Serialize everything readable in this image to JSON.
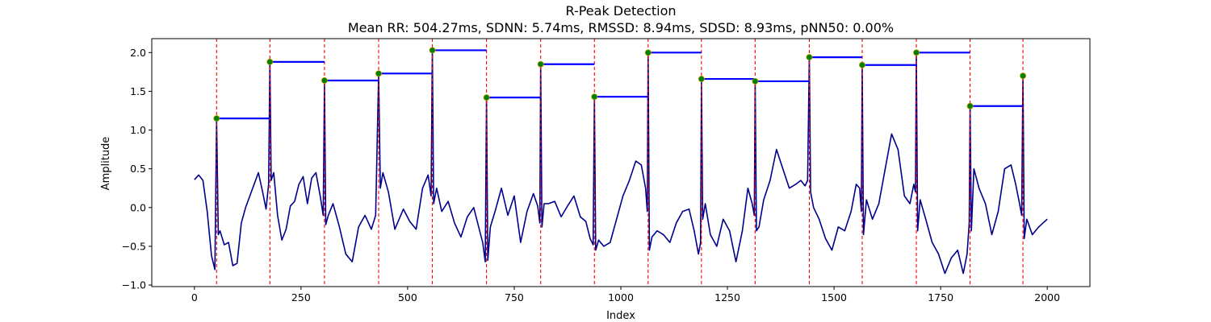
{
  "chart_data": {
    "type": "line",
    "title": "R-Peak Detection",
    "subtitle": "Mean RR: 504.27ms, SDNN: 5.74ms, RMSSD: 8.94ms, SDSD: 8.93ms, pNN50: 0.00%",
    "xlabel": "Index",
    "ylabel": "Amplitude",
    "xlim": [
      -100,
      2100
    ],
    "ylim": [
      -1.02,
      2.18
    ],
    "xticks": [
      0,
      250,
      500,
      750,
      1000,
      1250,
      1500,
      1750,
      2000
    ],
    "yticks": [
      -1.0,
      -0.5,
      0.0,
      0.5,
      1.0,
      1.5,
      2.0
    ],
    "grid": false,
    "colors": {
      "signal": "#00008B",
      "peak_line": "#FF0000",
      "rr_bar": "#0000FF",
      "peak_marker": "#008000"
    },
    "peaks": [
      {
        "x": 52,
        "y": 1.15
      },
      {
        "x": 177,
        "y": 1.88
      },
      {
        "x": 305,
        "y": 1.64
      },
      {
        "x": 432,
        "y": 1.73
      },
      {
        "x": 558,
        "y": 2.03
      },
      {
        "x": 685,
        "y": 1.42
      },
      {
        "x": 812,
        "y": 1.85
      },
      {
        "x": 938,
        "y": 1.43
      },
      {
        "x": 1064,
        "y": 2.0
      },
      {
        "x": 1189,
        "y": 1.66
      },
      {
        "x": 1315,
        "y": 1.63
      },
      {
        "x": 1442,
        "y": 1.94
      },
      {
        "x": 1566,
        "y": 1.84
      },
      {
        "x": 1693,
        "y": 2.0
      },
      {
        "x": 1819,
        "y": 1.31
      },
      {
        "x": 1943,
        "y": 1.7
      }
    ],
    "signal": {
      "x": [
        0,
        10,
        20,
        30,
        40,
        48,
        52,
        56,
        60,
        70,
        80,
        90,
        100,
        110,
        120,
        130,
        140,
        150,
        160,
        168,
        174,
        177,
        180,
        186,
        195,
        205,
        215,
        225,
        235,
        245,
        255,
        265,
        275,
        285,
        295,
        302,
        305,
        308,
        314,
        325,
        340,
        355,
        370,
        385,
        400,
        415,
        425,
        432,
        436,
        442,
        455,
        470,
        490,
        505,
        520,
        535,
        548,
        555,
        558,
        561,
        568,
        580,
        595,
        610,
        625,
        640,
        655,
        668,
        676,
        682,
        685,
        688,
        694,
        705,
        720,
        735,
        750,
        765,
        780,
        795,
        805,
        810,
        812,
        815,
        820,
        830,
        845,
        860,
        875,
        890,
        905,
        918,
        928,
        935,
        938,
        941,
        948,
        960,
        975,
        990,
        1005,
        1020,
        1035,
        1048,
        1058,
        1062,
        1064,
        1067,
        1073,
        1085,
        1100,
        1115,
        1130,
        1145,
        1160,
        1172,
        1182,
        1187,
        1189,
        1192,
        1198,
        1210,
        1225,
        1240,
        1255,
        1270,
        1285,
        1298,
        1308,
        1313,
        1315,
        1318,
        1324,
        1335,
        1350,
        1365,
        1380,
        1395,
        1410,
        1422,
        1432,
        1438,
        1442,
        1445,
        1452,
        1465,
        1480,
        1495,
        1510,
        1525,
        1540,
        1552,
        1560,
        1564,
        1566,
        1569,
        1576,
        1590,
        1605,
        1620,
        1635,
        1650,
        1665,
        1678,
        1687,
        1691,
        1693,
        1696,
        1702,
        1715,
        1730,
        1745,
        1760,
        1775,
        1790,
        1803,
        1812,
        1817,
        1819,
        1822,
        1828,
        1840,
        1855,
        1870,
        1885,
        1900,
        1915,
        1926,
        1935,
        1940,
        1943,
        1946,
        1952,
        1965,
        1980,
        1990,
        2000
      ],
      "y": [
        0.36,
        0.42,
        0.35,
        -0.05,
        -0.62,
        -0.8,
        1.15,
        -0.35,
        -0.3,
        -0.48,
        -0.45,
        -0.75,
        -0.72,
        -0.2,
        0.0,
        0.15,
        0.3,
        0.45,
        0.2,
        -0.02,
        0.3,
        1.88,
        0.35,
        0.45,
        -0.1,
        -0.42,
        -0.28,
        0.02,
        0.08,
        0.3,
        0.4,
        0.05,
        0.38,
        0.45,
        0.15,
        -0.1,
        1.64,
        -0.22,
        -0.1,
        0.05,
        -0.25,
        -0.6,
        -0.7,
        -0.25,
        -0.1,
        -0.28,
        -0.1,
        1.73,
        0.25,
        0.45,
        0.2,
        -0.28,
        -0.02,
        -0.18,
        -0.28,
        0.25,
        0.42,
        0.15,
        2.03,
        0.05,
        0.25,
        -0.05,
        0.08,
        -0.2,
        -0.38,
        -0.12,
        0.0,
        -0.28,
        -0.45,
        -0.7,
        1.42,
        -0.68,
        -0.25,
        -0.05,
        0.25,
        -0.1,
        0.15,
        -0.45,
        -0.05,
        0.18,
        0.02,
        -0.2,
        1.85,
        -0.25,
        0.05,
        0.05,
        0.08,
        -0.12,
        0.02,
        0.15,
        -0.12,
        -0.18,
        -0.4,
        -0.48,
        1.43,
        -0.55,
        -0.42,
        -0.5,
        -0.45,
        -0.15,
        0.15,
        0.35,
        0.6,
        0.55,
        0.25,
        -0.05,
        2.0,
        -0.55,
        -0.38,
        -0.3,
        -0.35,
        -0.45,
        -0.2,
        -0.05,
        -0.02,
        -0.3,
        -0.6,
        -0.45,
        1.66,
        -0.15,
        0.05,
        -0.35,
        -0.5,
        -0.15,
        -0.3,
        -0.7,
        -0.3,
        0.25,
        0.05,
        -0.1,
        1.63,
        -0.3,
        -0.25,
        0.1,
        0.35,
        0.75,
        0.5,
        0.25,
        0.3,
        0.35,
        0.28,
        0.35,
        1.94,
        0.2,
        0.0,
        -0.15,
        -0.4,
        -0.55,
        -0.25,
        -0.3,
        -0.05,
        0.3,
        0.25,
        -0.05,
        1.84,
        -0.35,
        0.1,
        -0.15,
        0.05,
        0.5,
        0.95,
        0.75,
        0.15,
        0.05,
        0.3,
        0.2,
        2.0,
        -0.3,
        0.1,
        -0.15,
        -0.45,
        -0.6,
        -0.85,
        -0.65,
        -0.55,
        -0.85,
        -0.6,
        -0.2,
        1.31,
        -0.3,
        0.5,
        0.25,
        0.05,
        -0.35,
        -0.05,
        0.5,
        0.55,
        0.3,
        0.05,
        -0.1,
        1.7,
        -0.4,
        -0.15,
        -0.35,
        -0.25,
        -0.2,
        -0.15
      ]
    }
  }
}
